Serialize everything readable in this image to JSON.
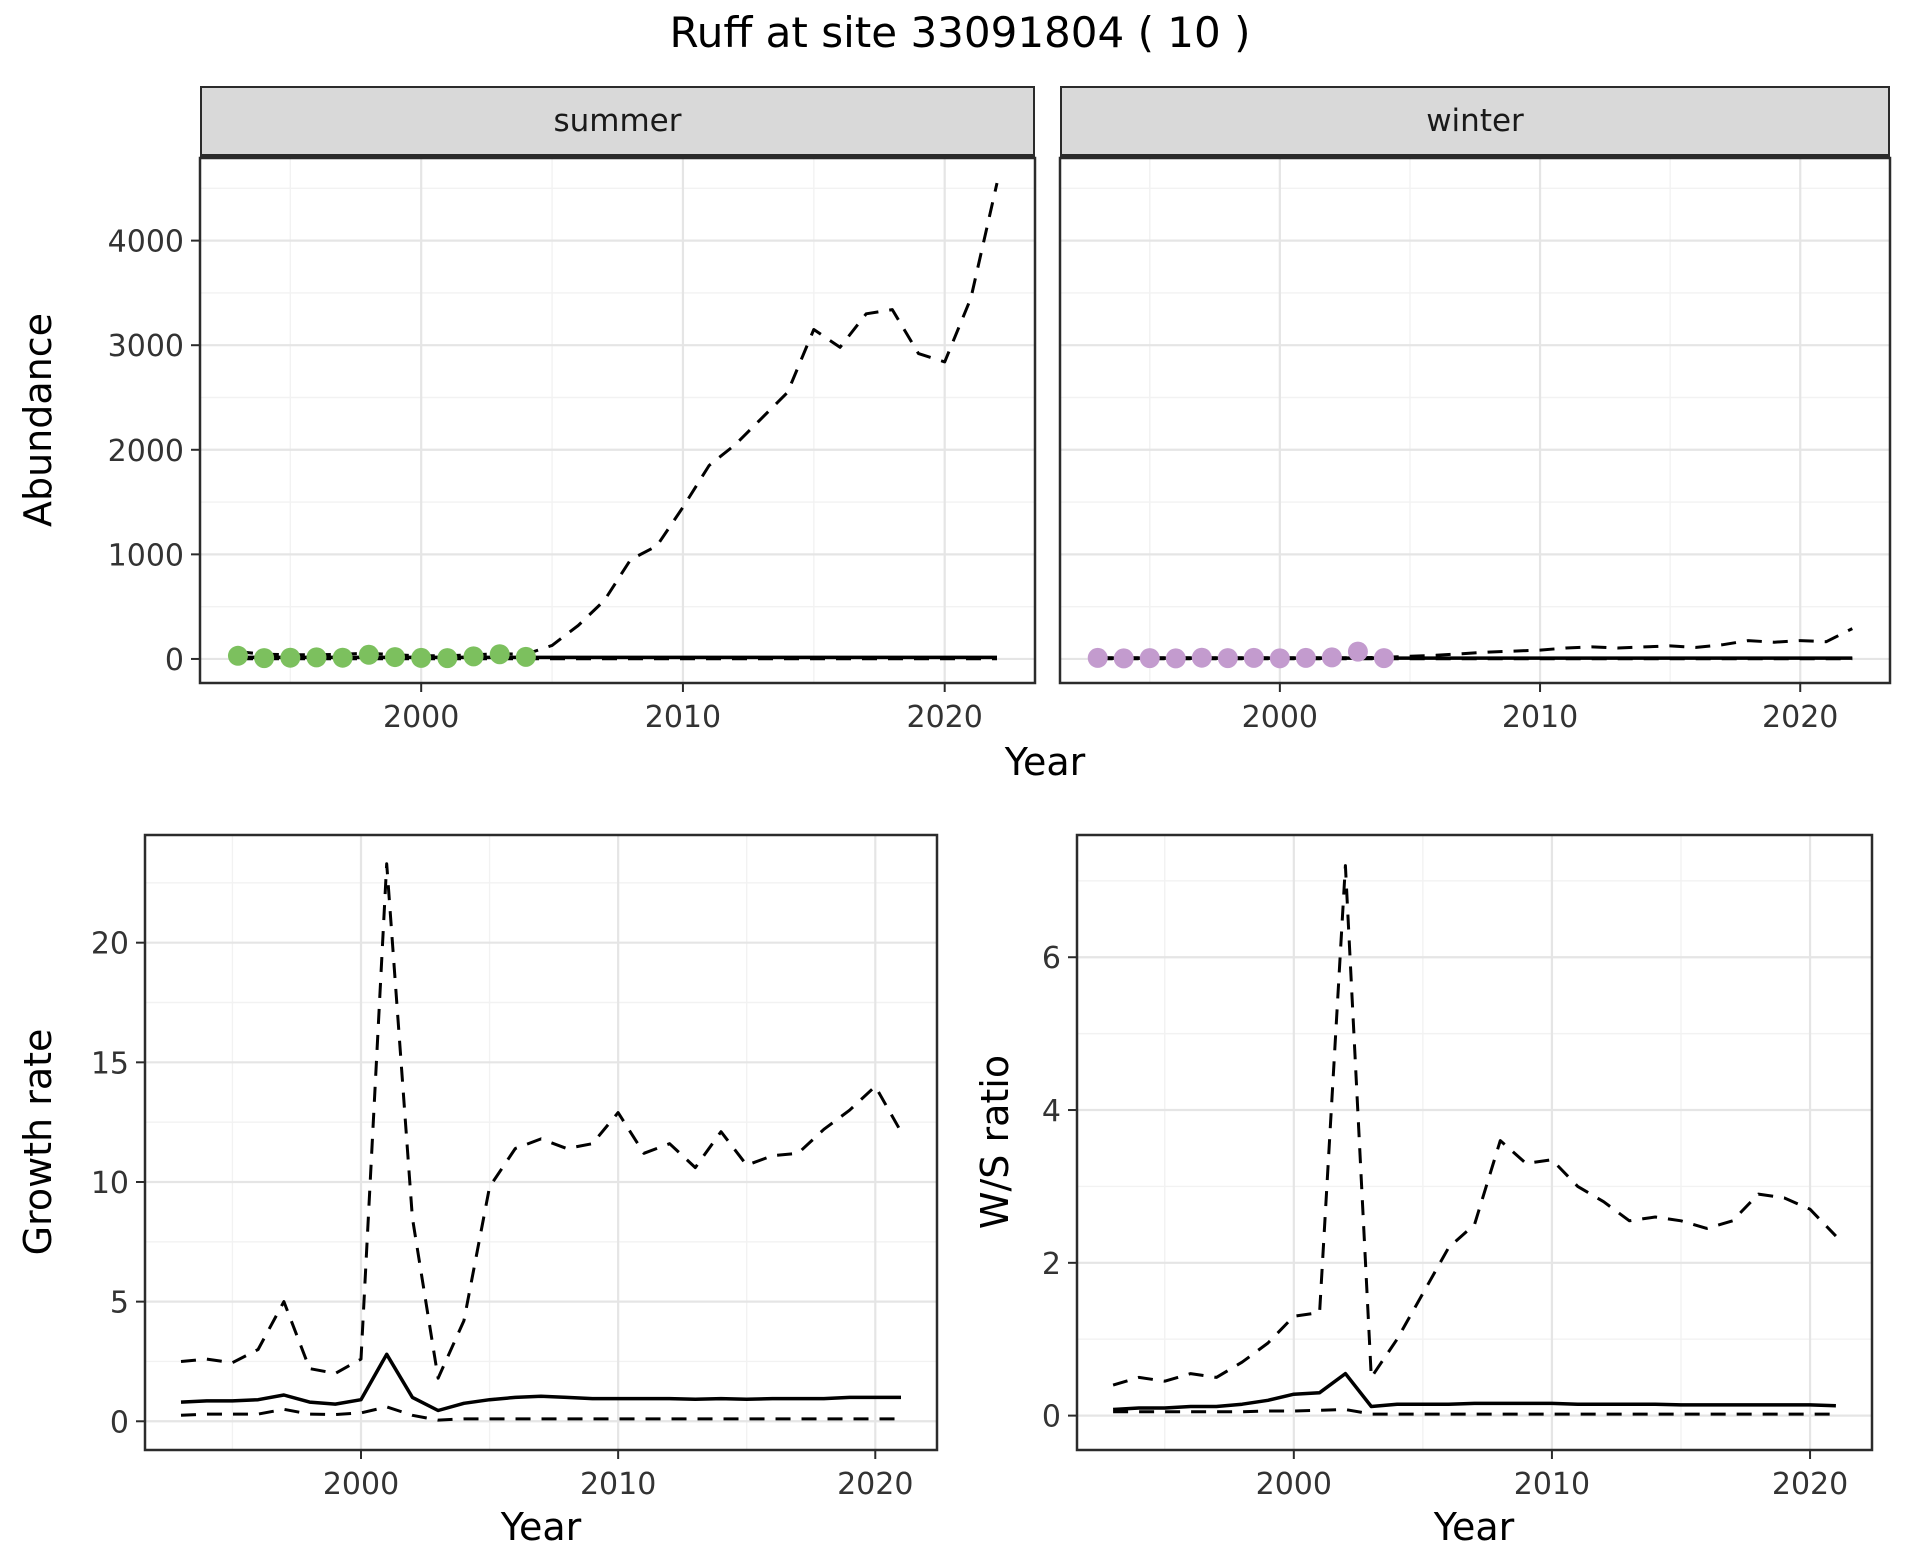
{
  "title": "Ruff at site 33091804 ( 10 )",
  "colors": {
    "summer_point": "#7cc05e",
    "winter_point": "#c39bce",
    "line": "#000000",
    "strip_bg": "#d9d9d9",
    "panel_border": "#2b2b2b",
    "grid_major": "#e5e5e5",
    "grid_minor": "#f2f2f2"
  },
  "chart_data": [
    {
      "type": "line",
      "title": "summer",
      "xlabel": "Year",
      "ylabel": "Abundance",
      "xlim": [
        1991.55,
        2023.45
      ],
      "ylim": [
        -230,
        4790
      ],
      "xticks": [
        2000,
        2010,
        2020
      ],
      "yticks": [
        0,
        1000,
        2000,
        3000,
        4000
      ],
      "xminor": [
        1995,
        2005,
        2015
      ],
      "yminor": [
        500,
        1500,
        2500,
        3500,
        4500
      ],
      "grid": true,
      "legend": "none",
      "series": [
        {
          "name": "upper-ci",
          "style": "dashed",
          "x": [
            1993,
            1994,
            1995,
            1996,
            1997,
            1998,
            1999,
            2000,
            2001,
            2002,
            2003,
            2004,
            2005,
            2006,
            2007,
            2008,
            2009,
            2010,
            2011,
            2012,
            2013,
            2014,
            2015,
            2016,
            2017,
            2018,
            2019,
            2020,
            2021,
            2022
          ],
          "y": [
            70,
            45,
            40,
            40,
            45,
            55,
            40,
            30,
            30,
            40,
            50,
            45,
            130,
            320,
            560,
            950,
            1080,
            1450,
            1850,
            2050,
            2300,
            2550,
            3150,
            2980,
            3300,
            3340,
            2920,
            2840,
            3450,
            4550
          ]
        },
        {
          "name": "lower-ci",
          "style": "dashed",
          "x": [
            1993,
            2022
          ],
          "y": [
            2,
            2
          ]
        },
        {
          "name": "model-fit",
          "style": "solid",
          "x": [
            1993,
            2022
          ],
          "y": [
            15,
            15
          ]
        },
        {
          "name": "summer-observations",
          "style": "points",
          "color": "#7cc05e",
          "x": [
            1993,
            1994,
            1995,
            1996,
            1997,
            1998,
            1999,
            2000,
            2001,
            2002,
            2003,
            2004
          ],
          "y": [
            30,
            8,
            12,
            15,
            12,
            40,
            18,
            10,
            8,
            25,
            45,
            20
          ]
        }
      ]
    },
    {
      "type": "line",
      "title": "winter",
      "xlabel": "Year",
      "ylabel": "Abundance",
      "xlim": [
        1991.55,
        2023.45
      ],
      "ylim": [
        -230,
        4790
      ],
      "xticks": [
        2000,
        2010,
        2020
      ],
      "yticks": [
        0,
        1000,
        2000,
        3000,
        4000
      ],
      "xminor": [
        1995,
        2005,
        2015
      ],
      "yminor": [
        500,
        1500,
        2500,
        3500,
        4500
      ],
      "grid": true,
      "legend": "none",
      "series": [
        {
          "name": "upper-ci",
          "style": "dashed",
          "x": [
            1993,
            1994,
            1995,
            1996,
            1997,
            1998,
            1999,
            2000,
            2001,
            2002,
            2003,
            2004,
            2005,
            2006,
            2007,
            2008,
            2009,
            2010,
            2011,
            2012,
            2013,
            2014,
            2015,
            2016,
            2017,
            2018,
            2019,
            2020,
            2021,
            2022
          ],
          "y": [
            12,
            12,
            12,
            12,
            12,
            12,
            12,
            12,
            12,
            12,
            12,
            15,
            25,
            35,
            50,
            65,
            75,
            85,
            105,
            115,
            105,
            115,
            125,
            110,
            135,
            175,
            160,
            175,
            165,
            290
          ]
        },
        {
          "name": "lower-ci",
          "style": "dashed",
          "x": [
            1993,
            2022
          ],
          "y": [
            1,
            1
          ]
        },
        {
          "name": "model-fit",
          "style": "solid",
          "x": [
            1993,
            2022
          ],
          "y": [
            8,
            8
          ]
        },
        {
          "name": "winter-observations",
          "style": "points",
          "color": "#c39bce",
          "x": [
            1993,
            1994,
            1995,
            1996,
            1997,
            1998,
            1999,
            2000,
            2001,
            2002,
            2003,
            2004
          ],
          "y": [
            10,
            5,
            8,
            5,
            12,
            8,
            10,
            6,
            10,
            15,
            70,
            8
          ]
        }
      ]
    },
    {
      "type": "line",
      "title": "",
      "xlabel": "Year",
      "ylabel": "Growth rate",
      "xlim": [
        1991.6,
        2022.4
      ],
      "ylim": [
        -1.2,
        24.5
      ],
      "xticks": [
        2000,
        2010,
        2020
      ],
      "yticks": [
        0,
        5,
        10,
        15,
        20
      ],
      "xminor": [
        1995,
        2005,
        2015
      ],
      "yminor": [
        2.5,
        7.5,
        12.5,
        17.5,
        22.5
      ],
      "grid": true,
      "legend": "none",
      "series": [
        {
          "name": "upper-ci",
          "style": "dashed",
          "x": [
            1993,
            1994,
            1995,
            1996,
            1997,
            1998,
            1999,
            2000,
            2001,
            2002,
            2003,
            2004,
            2005,
            2006,
            2007,
            2008,
            2009,
            2010,
            2011,
            2012,
            2013,
            2014,
            2015,
            2016,
            2017,
            2018,
            2019,
            2020,
            2021
          ],
          "y": [
            2.5,
            2.6,
            2.45,
            3.0,
            5.0,
            2.2,
            2.0,
            2.6,
            23.3,
            8.5,
            1.8,
            4.2,
            9.8,
            11.4,
            11.8,
            11.4,
            11.6,
            12.9,
            11.2,
            11.6,
            10.6,
            12.1,
            10.7,
            11.1,
            11.2,
            12.2,
            13.0,
            14.0,
            12.1
          ]
        },
        {
          "name": "lower-ci",
          "style": "dashed",
          "x": [
            1993,
            1994,
            1995,
            1996,
            1997,
            1998,
            1999,
            2000,
            2001,
            2002,
            2003,
            2004,
            2005,
            2006,
            2007,
            2008,
            2009,
            2010,
            2011,
            2012,
            2013,
            2014,
            2015,
            2016,
            2017,
            2018,
            2019,
            2020,
            2021
          ],
          "y": [
            0.25,
            0.3,
            0.3,
            0.3,
            0.5,
            0.3,
            0.28,
            0.35,
            0.6,
            0.25,
            0.05,
            0.1,
            0.1,
            0.1,
            0.1,
            0.1,
            0.1,
            0.1,
            0.1,
            0.1,
            0.1,
            0.1,
            0.1,
            0.1,
            0.1,
            0.1,
            0.1,
            0.1,
            0.1
          ]
        },
        {
          "name": "model-fit",
          "style": "solid",
          "x": [
            1993,
            1994,
            1995,
            1996,
            1997,
            1998,
            1999,
            2000,
            2001,
            2002,
            2003,
            2004,
            2005,
            2006,
            2007,
            2008,
            2009,
            2010,
            2011,
            2012,
            2013,
            2014,
            2015,
            2016,
            2017,
            2018,
            2019,
            2020,
            2021
          ],
          "y": [
            0.8,
            0.85,
            0.85,
            0.9,
            1.1,
            0.8,
            0.72,
            0.9,
            2.8,
            1.0,
            0.45,
            0.75,
            0.9,
            1.0,
            1.05,
            1.0,
            0.95,
            0.95,
            0.95,
            0.95,
            0.92,
            0.95,
            0.92,
            0.95,
            0.95,
            0.95,
            1.0,
            1.0,
            1.0
          ]
        }
      ]
    },
    {
      "type": "line",
      "title": "",
      "xlabel": "Year",
      "ylabel": "W/S ratio",
      "xlim": [
        1991.6,
        2022.4
      ],
      "ylim": [
        -0.45,
        7.6
      ],
      "xticks": [
        2000,
        2010,
        2020
      ],
      "yticks": [
        0,
        2,
        4,
        6
      ],
      "xminor": [
        1995,
        2005,
        2015
      ],
      "yminor": [
        1,
        3,
        5,
        7
      ],
      "grid": true,
      "legend": "none",
      "series": [
        {
          "name": "upper-ci",
          "style": "dashed",
          "x": [
            1993,
            1994,
            1995,
            1996,
            1997,
            1998,
            1999,
            2000,
            2001,
            2002,
            2003,
            2004,
            2005,
            2006,
            2007,
            2008,
            2009,
            2010,
            2011,
            2012,
            2013,
            2014,
            2015,
            2016,
            2017,
            2018,
            2019,
            2020,
            2021
          ],
          "y": [
            0.4,
            0.5,
            0.45,
            0.55,
            0.5,
            0.7,
            0.95,
            1.3,
            1.35,
            7.2,
            0.5,
            1.0,
            1.6,
            2.2,
            2.5,
            3.6,
            3.3,
            3.35,
            3.0,
            2.8,
            2.55,
            2.6,
            2.55,
            2.45,
            2.55,
            2.9,
            2.85,
            2.7,
            2.35
          ]
        },
        {
          "name": "lower-ci",
          "style": "dashed",
          "x": [
            1993,
            1994,
            1995,
            1996,
            1997,
            1998,
            1999,
            2000,
            2001,
            2002,
            2003,
            2004,
            2005,
            2006,
            2007,
            2008,
            2009,
            2010,
            2011,
            2012,
            2013,
            2014,
            2015,
            2016,
            2017,
            2018,
            2019,
            2020,
            2021
          ],
          "y": [
            0.05,
            0.05,
            0.05,
            0.05,
            0.05,
            0.05,
            0.06,
            0.06,
            0.07,
            0.08,
            0.02,
            0.02,
            0.02,
            0.02,
            0.02,
            0.02,
            0.02,
            0.02,
            0.02,
            0.02,
            0.02,
            0.02,
            0.02,
            0.02,
            0.02,
            0.02,
            0.02,
            0.02,
            0.02
          ]
        },
        {
          "name": "model-fit",
          "style": "solid",
          "x": [
            1993,
            1994,
            1995,
            1996,
            1997,
            1998,
            1999,
            2000,
            2001,
            2002,
            2003,
            2004,
            2005,
            2006,
            2007,
            2008,
            2009,
            2010,
            2011,
            2012,
            2013,
            2014,
            2015,
            2016,
            2017,
            2018,
            2019,
            2020,
            2021
          ],
          "y": [
            0.08,
            0.1,
            0.1,
            0.12,
            0.12,
            0.15,
            0.2,
            0.28,
            0.3,
            0.55,
            0.12,
            0.15,
            0.15,
            0.15,
            0.16,
            0.16,
            0.16,
            0.16,
            0.15,
            0.15,
            0.15,
            0.15,
            0.14,
            0.14,
            0.14,
            0.14,
            0.14,
            0.14,
            0.13
          ]
        }
      ]
    }
  ]
}
